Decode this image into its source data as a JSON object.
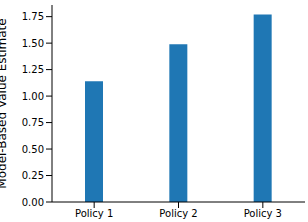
{
  "chart_data": {
    "type": "bar",
    "y_label": "Model-Based Value Estimate",
    "categories": [
      "Policy 1",
      "Policy 2",
      "Policy 3"
    ],
    "values": [
      1.14,
      1.49,
      1.77
    ],
    "color": "#1f77b4",
    "ylim": [
      0,
      1.86
    ],
    "yticks": [
      {
        "value": 0,
        "label": "0.00"
      },
      {
        "value": 0.25,
        "label": "0.25"
      },
      {
        "value": 0.5,
        "label": "0.50"
      },
      {
        "value": 0.75,
        "label": "0.75"
      },
      {
        "value": 1,
        "label": "1.00"
      },
      {
        "value": 1.25,
        "label": "1.25"
      },
      {
        "value": 1.5,
        "label": "1.50"
      },
      {
        "value": 1.75,
        "label": "1.75"
      }
    ],
    "grid": false
  }
}
